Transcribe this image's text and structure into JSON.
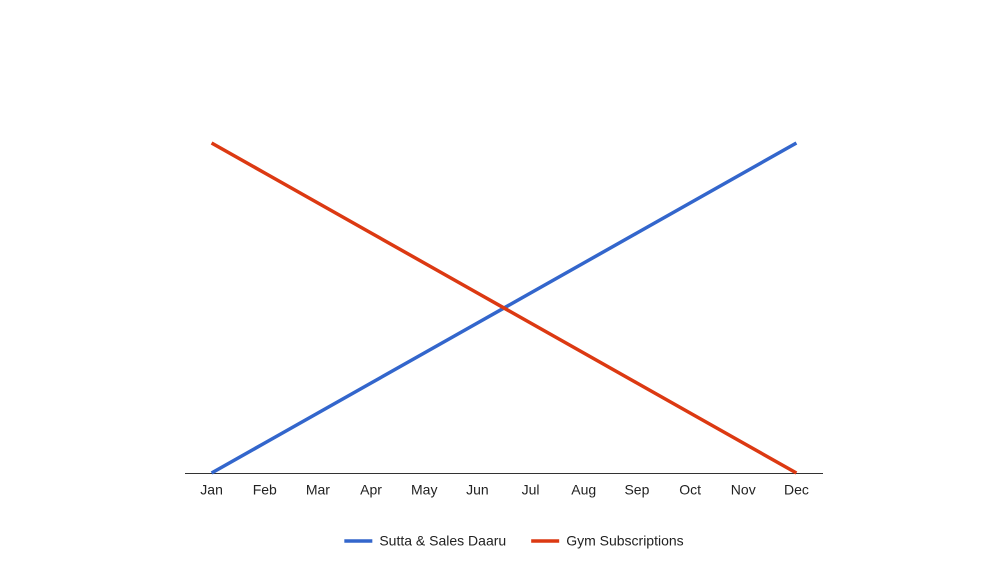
{
  "chart_data": {
    "type": "line",
    "categories": [
      "Jan",
      "Feb",
      "Mar",
      "Apr",
      "May",
      "Jun",
      "Jul",
      "Aug",
      "Sep",
      "Oct",
      "Nov",
      "Dec"
    ],
    "series": [
      {
        "name": "Sutta & Sales Daaru",
        "color": "#3366cc",
        "values": [
          0,
          1,
          2,
          3,
          4,
          5,
          6,
          7,
          8,
          9,
          10,
          11
        ]
      },
      {
        "name": "Gym Subscriptions",
        "color": "#dc3912",
        "values": [
          11,
          10,
          9,
          8,
          7,
          6,
          5,
          4,
          3,
          2,
          1,
          0
        ]
      }
    ],
    "ylim": [
      0,
      11
    ],
    "legend": "bottom"
  }
}
